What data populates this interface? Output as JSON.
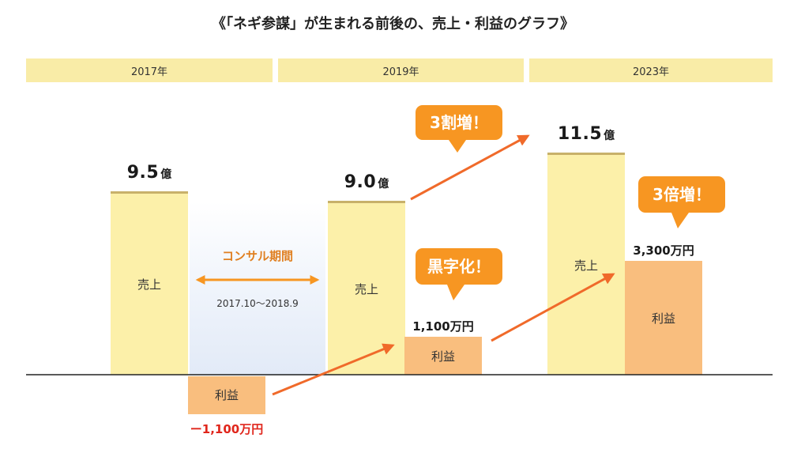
{
  "title": "《「ネギ参謀」が生まれる前後の、売上・利益のグラフ》",
  "colors": {
    "sales": "#fcf0a9",
    "sales_top": "#c8b16a",
    "profit": "#f9be7e",
    "arrow": "#f06a2a",
    "callout": "#f79622",
    "axis": "#222222",
    "negative": "#e0261c",
    "year_band": "#f9eca7"
  },
  "consulting": {
    "label": "コンサル期間",
    "period": "2017.10～2018.9"
  },
  "callouts": [
    {
      "id": "sales-growth",
      "text": "3割増！"
    },
    {
      "id": "profit-turnaround",
      "text": "黒字化！"
    },
    {
      "id": "profit-growth",
      "text": "3倍増！"
    }
  ],
  "chart_data": {
    "type": "bar",
    "categories": [
      "2017年",
      "2019年",
      "2023年"
    ],
    "series": [
      {
        "name": "売上",
        "values": [
          9.5,
          9.0,
          11.5
        ],
        "unit": "億",
        "labels": [
          {
            "number": "9.5",
            "unit": "億"
          },
          {
            "number": "9.0",
            "unit": "億"
          },
          {
            "number": "11.5",
            "unit": "億"
          }
        ]
      },
      {
        "name": "利益",
        "values": [
          -1100,
          1100,
          3300
        ],
        "unit": "万円",
        "labels": [
          "ー1,100万円",
          "1,100万円",
          "3,300万円"
        ]
      }
    ],
    "xlabel": "",
    "ylabel": "",
    "title": "《「ネギ参謀」が生まれる前後の、売上・利益のグラフ》",
    "legend": "none",
    "grid": false
  }
}
